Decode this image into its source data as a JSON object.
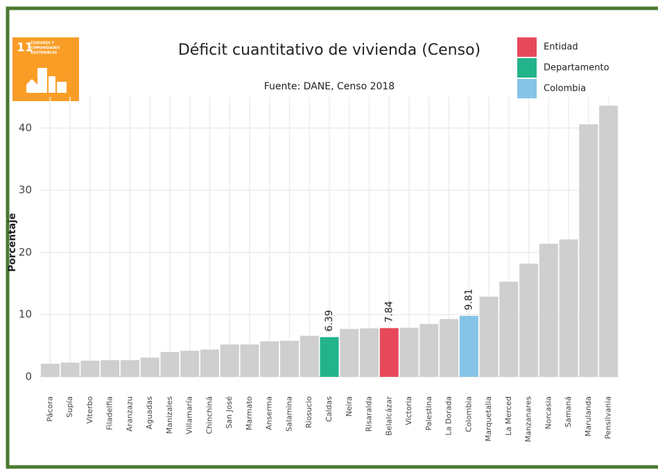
{
  "chart_data": {
    "type": "bar",
    "title": "Déficit cuantitativo de vivienda (Censo)",
    "subtitle": "Fuente: DANE, Censo 2018",
    "y_label": "Porcentaje",
    "badge": {
      "number": "11",
      "lines": [
        "CIUDADES Y",
        "COMUNIDADES",
        "SOSTENIBLES"
      ],
      "color": "#f99d26"
    },
    "categories": [
      "Pácora",
      "Supía",
      "Viterbo",
      "Filadelfia",
      "Aranzazu",
      "Aguadas",
      "Manizales",
      "Villamaría",
      "Chinchiná",
      "San José",
      "Marmato",
      "Anserma",
      "Salamina",
      "Riosucio",
      "Caldas",
      "Neira",
      "Risaralda",
      "Belalcázar",
      "Victoria",
      "Palestina",
      "La Dorada",
      "Colombia",
      "Marquetalia",
      "La Merced",
      "Manzanares",
      "Norcasia",
      "Samaná",
      "Marulanda",
      "Pensilvania"
    ],
    "values": [
      2.1,
      2.3,
      2.6,
      2.7,
      2.7,
      3.1,
      4.0,
      4.2,
      4.4,
      5.2,
      5.2,
      5.7,
      5.8,
      6.6,
      6.39,
      7.7,
      7.8,
      7.84,
      7.9,
      8.5,
      9.3,
      9.81,
      12.9,
      15.3,
      18.2,
      21.4,
      22.1,
      40.6,
      43.6
    ],
    "value_labels": [
      null,
      null,
      null,
      null,
      null,
      null,
      null,
      null,
      null,
      null,
      null,
      null,
      null,
      null,
      "6.39",
      null,
      null,
      "7.84",
      null,
      null,
      null,
      "9.81",
      null,
      null,
      null,
      null,
      null,
      null,
      null
    ],
    "colors": [
      "#cfcfcf",
      "#cfcfcf",
      "#cfcfcf",
      "#cfcfcf",
      "#cfcfcf",
      "#cfcfcf",
      "#cfcfcf",
      "#cfcfcf",
      "#cfcfcf",
      "#cfcfcf",
      "#cfcfcf",
      "#cfcfcf",
      "#cfcfcf",
      "#cfcfcf",
      "#22b38a",
      "#cfcfcf",
      "#cfcfcf",
      "#e8495a",
      "#cfcfcf",
      "#cfcfcf",
      "#cfcfcf",
      "#85c4e6",
      "#cfcfcf",
      "#cfcfcf",
      "#cfcfcf",
      "#cfcfcf",
      "#cfcfcf",
      "#cfcfcf",
      "#cfcfcf"
    ],
    "legend": [
      {
        "name": "Entidad",
        "color": "#e8495a"
      },
      {
        "name": "Departamento",
        "color": "#22b38a"
      },
      {
        "name": "Colombia",
        "color": "#85c4e6"
      }
    ],
    "ylim": [
      0,
      45
    ],
    "yticks": [
      0,
      10,
      20,
      30,
      40
    ],
    "grid": true
  }
}
